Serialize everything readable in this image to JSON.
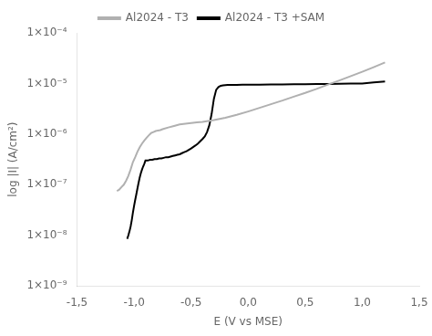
{
  "chart_data": {
    "type": "line",
    "xlabel": "E (V vs MSE)",
    "ylabel": "log |I| (A/cm²)",
    "log": "y",
    "grid": false,
    "legend": "top",
    "xlim": [
      -1.5,
      1.5
    ],
    "ylim": [
      1e-09,
      0.0001
    ],
    "xticks": [
      {
        "value": -1.5,
        "label": "-1,5"
      },
      {
        "value": -1.0,
        "label": "-1,0"
      },
      {
        "value": -0.5,
        "label": "-0,5"
      },
      {
        "value": 0.0,
        "label": "0,0"
      },
      {
        "value": 0.5,
        "label": "0,5"
      },
      {
        "value": 1.0,
        "label": "1,0"
      },
      {
        "value": 1.5,
        "label": "1,5"
      }
    ],
    "yticks": [
      {
        "value": 1e-09,
        "label": "1×10⁻⁹"
      },
      {
        "value": 1e-08,
        "label": "1×10⁻⁸"
      },
      {
        "value": 1e-07,
        "label": "1×10⁻⁷"
      },
      {
        "value": 1e-06,
        "label": "1×10⁻⁶"
      },
      {
        "value": 1e-05,
        "label": "1×10⁻⁵"
      },
      {
        "value": 0.0001,
        "label": "1×10⁻⁴"
      }
    ],
    "series": [
      {
        "name": "Al2024 - T3",
        "color": "#b0b0b0",
        "x": [
          -1.15,
          -1.13,
          -1.11,
          -1.09,
          -1.07,
          -1.05,
          -1.03,
          -1.01,
          -0.99,
          -0.97,
          -0.95,
          -0.93,
          -0.91,
          -0.89,
          -0.87,
          -0.85,
          -0.83,
          -0.81,
          -0.79,
          -0.77,
          -0.75,
          -0.7,
          -0.65,
          -0.6,
          -0.55,
          -0.5,
          -0.45,
          -0.4,
          -0.3,
          -0.2,
          -0.1,
          0.0,
          0.1,
          0.2,
          0.3,
          0.4,
          0.5,
          0.6,
          0.7,
          0.8,
          0.9,
          1.0,
          1.1,
          1.2
        ],
        "values": [
          7.5e-08,
          8e-08,
          9e-08,
          1e-07,
          1.2e-07,
          1.5e-07,
          2e-07,
          2.8e-07,
          3.5e-07,
          4.5e-07,
          5.5e-07,
          6.5e-07,
          7.5e-07,
          8.5e-07,
          9.5e-07,
          1.05e-06,
          1.1e-06,
          1.15e-06,
          1.18e-06,
          1.2e-06,
          1.25e-06,
          1.35e-06,
          1.45e-06,
          1.55e-06,
          1.6e-06,
          1.65e-06,
          1.7e-06,
          1.75e-06,
          1.9e-06,
          2.1e-06,
          2.4e-06,
          2.8e-06,
          3.3e-06,
          3.9e-06,
          4.6e-06,
          5.5e-06,
          6.5e-06,
          7.8e-06,
          9.5e-06,
          1.15e-05,
          1.4e-05,
          1.7e-05,
          2.1e-05,
          2.6e-05
        ]
      },
      {
        "name": "Al2024 - T3 +SAM",
        "color": "#000000",
        "x": [
          -1.06,
          -1.05,
          -1.04,
          -1.03,
          -1.02,
          -1.01,
          -1.0,
          -0.99,
          -0.98,
          -0.97,
          -0.96,
          -0.95,
          -0.94,
          -0.93,
          -0.92,
          -0.91,
          -0.9,
          -0.88,
          -0.86,
          -0.84,
          -0.82,
          -0.8,
          -0.78,
          -0.76,
          -0.74,
          -0.72,
          -0.7,
          -0.68,
          -0.66,
          -0.64,
          -0.62,
          -0.6,
          -0.58,
          -0.56,
          -0.54,
          -0.52,
          -0.5,
          -0.48,
          -0.46,
          -0.44,
          -0.42,
          -0.4,
          -0.38,
          -0.36,
          -0.34,
          -0.32,
          -0.3,
          -0.28,
          -0.26,
          -0.24,
          -0.22,
          -0.2,
          -0.18,
          -0.15,
          -0.1,
          -0.05,
          0.0,
          0.1,
          0.2,
          0.3,
          0.4,
          0.5,
          0.6,
          0.7,
          0.8,
          0.9,
          1.0,
          1.1,
          1.2
        ],
        "values": [
          8.5e-09,
          1e-08,
          1.2e-08,
          1.5e-08,
          2e-08,
          2.8e-08,
          3.8e-08,
          5e-08,
          6.5e-08,
          8.5e-08,
          1.1e-07,
          1.4e-07,
          1.7e-07,
          2e-07,
          2.3e-07,
          2.6e-07,
          3e-07,
          3e-07,
          3.1e-07,
          3.1e-07,
          3.2e-07,
          3.2e-07,
          3.3e-07,
          3.3e-07,
          3.4e-07,
          3.5e-07,
          3.5e-07,
          3.6e-07,
          3.7e-07,
          3.8e-07,
          3.9e-07,
          4e-07,
          4.2e-07,
          4.4e-07,
          4.6e-07,
          4.9e-07,
          5.2e-07,
          5.6e-07,
          6e-07,
          6.5e-07,
          7.2e-07,
          8e-07,
          9e-07,
          1.1e-06,
          1.5e-06,
          2.5e-06,
          5e-06,
          7.5e-06,
          8.5e-06,
          9e-06,
          9.2e-06,
          9.3e-06,
          9.4e-06,
          9.4e-06,
          9.4e-06,
          9.5e-06,
          9.5e-06,
          9.5e-06,
          9.6e-06,
          9.6e-06,
          9.7e-06,
          9.7e-06,
          9.8e-06,
          9.8e-06,
          9.9e-06,
          1e-05,
          1e-05,
          1.05e-05,
          1.1e-05
        ]
      }
    ]
  }
}
